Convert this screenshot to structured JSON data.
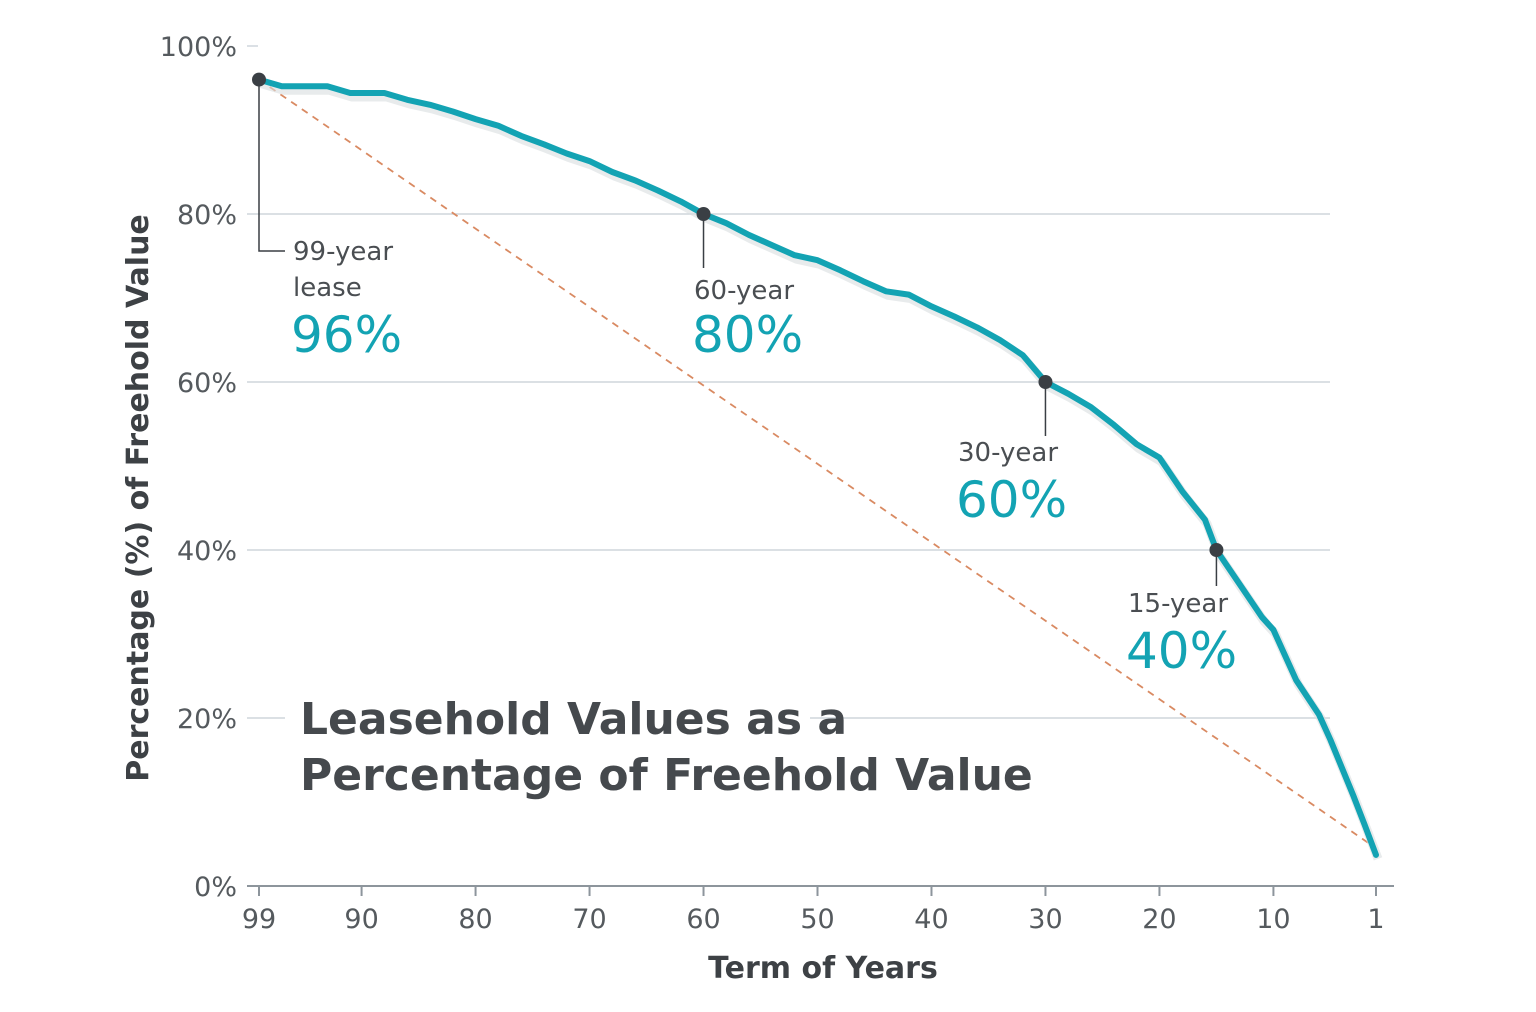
{
  "chart_data": {
    "type": "line",
    "title": [
      "Leasehold Values as a",
      "Percentage of Freehold Value"
    ],
    "xlabel": "Term of Years",
    "ylabel": "Percentage (%) of Freehold Value",
    "xlim": [
      99,
      1
    ],
    "x_reversed": true,
    "ylim": [
      0,
      100
    ],
    "x_ticks": [
      "99",
      "90",
      "80",
      "70",
      "60",
      "50",
      "40",
      "30",
      "20",
      "10",
      "1"
    ],
    "y_ticks": [
      "0%",
      "20%",
      "40%",
      "60%",
      "80%",
      "100%"
    ],
    "grid": "horizontal",
    "colors": {
      "curve": "#13a3b3",
      "reference": "#d98a62",
      "grid": "#cfd6dc",
      "marker": "#3a3f44"
    },
    "series": [
      {
        "x": [
          99,
          97,
          93,
          91,
          88,
          86,
          84,
          82,
          80,
          78,
          76,
          74,
          72,
          70,
          68,
          66,
          64,
          62,
          60,
          58,
          56,
          54,
          52,
          50,
          48,
          46,
          44,
          42,
          40,
          38,
          36,
          34,
          32,
          30,
          28,
          26,
          24,
          22,
          20,
          18,
          16,
          15,
          13,
          11,
          10,
          9,
          8,
          6,
          5,
          3,
          2,
          1
        ],
        "y": [
          96,
          95.2,
          95.2,
          94.4,
          94.4,
          93.6,
          93,
          92.2,
          91.3,
          90.5,
          89.3,
          88.3,
          87.2,
          86.3,
          85,
          84,
          82.8,
          81.5,
          80,
          78.9,
          77.5,
          76.3,
          75.1,
          74.5,
          73.3,
          72,
          70.8,
          70.4,
          69,
          67.8,
          66.5,
          65,
          63.2,
          60,
          58.6,
          57,
          54.9,
          52.6,
          51,
          47,
          43.6,
          40,
          36,
          32,
          30.5,
          27.5,
          24.5,
          20.4,
          17.4,
          10.8,
          7.3,
          3.7
        ]
      },
      {
        "style": "dashed",
        "x": [
          99,
          1
        ],
        "y": [
          96,
          4.5
        ]
      }
    ],
    "annotations": [
      {
        "x": 99,
        "y": 96,
        "label_lines": [
          "99-year",
          "lease"
        ],
        "value": "96%"
      },
      {
        "x": 60,
        "y": 80,
        "label_lines": [
          "60-year"
        ],
        "value": "80%"
      },
      {
        "x": 30,
        "y": 60,
        "label_lines": [
          "30-year"
        ],
        "value": "60%"
      },
      {
        "x": 15,
        "y": 40,
        "label_lines": [
          "15-year"
        ],
        "value": "40%"
      }
    ]
  }
}
